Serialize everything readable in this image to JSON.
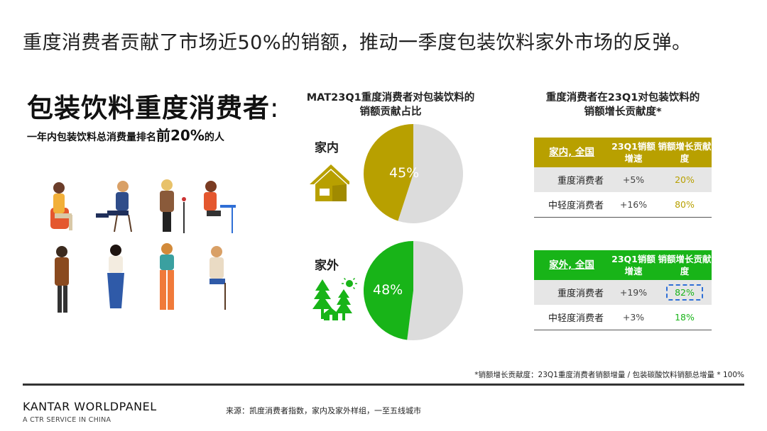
{
  "headline": "重度消费者贡献了市场近50%的销额，推动一季度包装饮料家外市场的反弹。",
  "left": {
    "title": "包装饮料重度消费者",
    "title_colon": ":",
    "subtitle_pre": "一年内包装饮料总消费量排名",
    "subtitle_em": "前20%",
    "subtitle_post": "的人"
  },
  "pies": {
    "title_line1": "MAT23Q1重度消费者对包装饮料的",
    "title_line2": "销额贡献占比",
    "home": {
      "label": "家内",
      "value_label": "45%",
      "share": 45,
      "color": "#b8a000",
      "icon": "house-icon"
    },
    "out": {
      "label": "家外",
      "value_label": "48%",
      "share": 48,
      "color": "#18b418",
      "icon": "outdoor-trees-sun-icon"
    },
    "rest_color": "#dcdcdc"
  },
  "tables": {
    "title_line1": "重度消费者在23Q1对包装饮料的",
    "title_line2": "销额增长贡献度*",
    "home": {
      "header": [
        "家内, 全国",
        "23Q1销额增速",
        "销额增长贡献度"
      ],
      "header_color": "#b8a000",
      "rows": [
        {
          "label": "重度消费者",
          "growth": "+5%",
          "contribution": "20%"
        },
        {
          "label": "中轻度消费者",
          "growth": "+16%",
          "contribution": "80%"
        }
      ]
    },
    "out": {
      "header": [
        "家外, 全国",
        "23Q1销额增速",
        "销额增长贡献度"
      ],
      "header_color": "#18b418",
      "rows": [
        {
          "label": "重度消费者",
          "growth": "+19%",
          "contribution": "82%"
        },
        {
          "label": "中轻度消费者",
          "growth": "+3%",
          "contribution": "18%"
        }
      ]
    }
  },
  "footnote": "*销额增长贡献度：23Q1重度消费者销额增量 / 包装碳酸饮料销额总增量 * 100%",
  "brand": {
    "name": "KANTAR WORLDPANEL",
    "tagline": "A CTR SERVICE IN CHINA"
  },
  "source": "来源：凯度消费者指数，家内及家外样组，一至五线城市"
}
